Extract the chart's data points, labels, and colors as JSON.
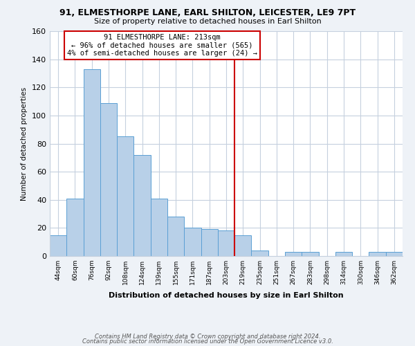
{
  "title": "91, ELMESTHORPE LANE, EARL SHILTON, LEICESTER, LE9 7PT",
  "subtitle": "Size of property relative to detached houses in Earl Shilton",
  "xlabel": "Distribution of detached houses by size in Earl Shilton",
  "ylabel": "Number of detached properties",
  "bin_labels": [
    "44sqm",
    "60sqm",
    "76sqm",
    "92sqm",
    "108sqm",
    "124sqm",
    "139sqm",
    "155sqm",
    "171sqm",
    "187sqm",
    "203sqm",
    "219sqm",
    "235sqm",
    "251sqm",
    "267sqm",
    "283sqm",
    "298sqm",
    "314sqm",
    "330sqm",
    "346sqm",
    "362sqm"
  ],
  "bar_heights": [
    15,
    41,
    133,
    109,
    85,
    72,
    41,
    28,
    20,
    19,
    18,
    15,
    4,
    0,
    3,
    3,
    0,
    3,
    0,
    3,
    3
  ],
  "bar_color": "#b8d0e8",
  "bar_edge_color": "#5a9fd4",
  "vline_x_idx": 11,
  "vline_color": "#cc0000",
  "annotation_text": "91 ELMESTHORPE LANE: 213sqm\n← 96% of detached houses are smaller (565)\n4% of semi-detached houses are larger (24) →",
  "annotation_box_color": "#ffffff",
  "annotation_box_edge": "#cc0000",
  "ylim": [
    0,
    160
  ],
  "yticks": [
    0,
    20,
    40,
    60,
    80,
    100,
    120,
    140,
    160
  ],
  "footer_line1": "Contains HM Land Registry data © Crown copyright and database right 2024.",
  "footer_line2": "Contains public sector information licensed under the Open Government Licence v3.0.",
  "bg_color": "#eef2f7",
  "plot_bg_color": "#ffffff",
  "grid_color": "#c5d0de"
}
